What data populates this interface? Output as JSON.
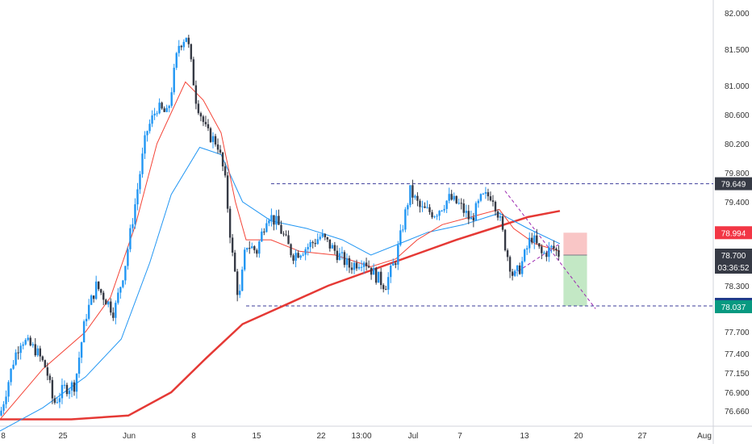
{
  "chart_data": {
    "type": "candlestick",
    "colors": {
      "up": "#2196f3",
      "down": "#363a45",
      "ema_fast": "#f44336",
      "ema_mid": "#2196f3",
      "ema_slow": "#e53935",
      "level_line": "#3b3b9a",
      "triangle": "#9c27b0",
      "stop_zone": "#f9c6c6",
      "target_zone": "#c3e8c5",
      "axis_text": "#333333",
      "label_dark": "#363a45",
      "label_red": "#f23645",
      "label_green": "#089981",
      "label_blue": "#1e3a8a"
    },
    "y_axis": {
      "ticks": [
        "82.000",
        "81.500",
        "81.000",
        "80.600",
        "80.200",
        "79.800",
        "79.400",
        "78.700",
        "78.300",
        "77.700",
        "77.400",
        "77.150",
        "76.900",
        "76.660"
      ],
      "range": [
        76.5,
        82.1
      ]
    },
    "x_axis": {
      "ticks": [
        "8",
        "25",
        "Jun",
        "8",
        "15",
        "22",
        "13:00",
        "Jul",
        "7",
        "13",
        "20",
        "27",
        "Aug"
      ]
    },
    "price_labels": {
      "resistance": "79.649",
      "stop": "78.994",
      "current": "78.700",
      "countdown": "03:36:52",
      "support": "78.037"
    },
    "levels": {
      "resistance": 79.649,
      "support": 78.037,
      "stop": 78.994,
      "entry": 78.7
    },
    "price_path": [
      [
        0.0,
        76.6
      ],
      [
        0.02,
        77.35
      ],
      [
        0.03,
        77.6
      ],
      [
        0.05,
        77.45
      ],
      [
        0.065,
        77.2
      ],
      [
        0.075,
        76.75
      ],
      [
        0.09,
        76.95
      ],
      [
        0.105,
        77.0
      ],
      [
        0.12,
        77.9
      ],
      [
        0.135,
        78.3
      ],
      [
        0.15,
        78.1
      ],
      [
        0.16,
        77.95
      ],
      [
        0.175,
        78.55
      ],
      [
        0.19,
        79.4
      ],
      [
        0.205,
        80.35
      ],
      [
        0.22,
        80.7
      ],
      [
        0.235,
        80.6
      ],
      [
        0.25,
        81.55
      ],
      [
        0.262,
        81.7
      ],
      [
        0.275,
        80.8
      ],
      [
        0.29,
        80.35
      ],
      [
        0.305,
        80.2
      ],
      [
        0.315,
        79.75
      ],
      [
        0.325,
        78.75
      ],
      [
        0.335,
        78.1
      ],
      [
        0.345,
        78.85
      ],
      [
        0.36,
        78.75
      ],
      [
        0.375,
        79.25
      ],
      [
        0.39,
        79.1
      ],
      [
        0.41,
        78.7
      ],
      [
        0.43,
        78.8
      ],
      [
        0.45,
        78.95
      ],
      [
        0.47,
        78.75
      ],
      [
        0.49,
        78.55
      ],
      [
        0.51,
        78.65
      ],
      [
        0.525,
        78.45
      ],
      [
        0.54,
        78.3
      ],
      [
        0.555,
        78.65
      ],
      [
        0.565,
        79.1
      ],
      [
        0.575,
        79.55
      ],
      [
        0.59,
        79.3
      ],
      [
        0.61,
        79.25
      ],
      [
        0.63,
        79.45
      ],
      [
        0.645,
        79.35
      ],
      [
        0.66,
        79.15
      ],
      [
        0.675,
        79.45
      ],
      [
        0.69,
        79.5
      ],
      [
        0.7,
        79.2
      ],
      [
        0.71,
        78.75
      ],
      [
        0.72,
        78.4
      ],
      [
        0.73,
        78.55
      ],
      [
        0.745,
        78.95
      ],
      [
        0.76,
        78.7
      ],
      [
        0.775,
        78.8
      ],
      [
        0.785,
        78.7
      ]
    ],
    "ema_slow_path": [
      [
        0.0,
        76.55
      ],
      [
        0.1,
        76.55
      ],
      [
        0.18,
        76.6
      ],
      [
        0.24,
        76.9
      ],
      [
        0.29,
        77.35
      ],
      [
        0.34,
        77.8
      ],
      [
        0.4,
        78.05
      ],
      [
        0.46,
        78.3
      ],
      [
        0.52,
        78.5
      ],
      [
        0.58,
        78.7
      ],
      [
        0.64,
        78.9
      ],
      [
        0.69,
        79.05
      ],
      [
        0.74,
        79.2
      ],
      [
        0.785,
        79.28
      ]
    ],
    "ema_mid_path": [
      [
        0.0,
        76.4
      ],
      [
        0.06,
        76.7
      ],
      [
        0.12,
        77.1
      ],
      [
        0.17,
        77.6
      ],
      [
        0.21,
        78.6
      ],
      [
        0.24,
        79.5
      ],
      [
        0.28,
        80.15
      ],
      [
        0.31,
        80.05
      ],
      [
        0.34,
        79.4
      ],
      [
        0.38,
        79.15
      ],
      [
        0.43,
        79.05
      ],
      [
        0.48,
        78.9
      ],
      [
        0.52,
        78.7
      ],
      [
        0.56,
        78.85
      ],
      [
        0.6,
        79.0
      ],
      [
        0.65,
        79.1
      ],
      [
        0.7,
        79.25
      ],
      [
        0.74,
        79.05
      ],
      [
        0.785,
        78.85
      ]
    ],
    "ema_fast_path": [
      [
        0.0,
        76.55
      ],
      [
        0.06,
        77.2
      ],
      [
        0.12,
        77.7
      ],
      [
        0.155,
        78.15
      ],
      [
        0.19,
        79.1
      ],
      [
        0.22,
        80.2
      ],
      [
        0.26,
        81.05
      ],
      [
        0.285,
        80.8
      ],
      [
        0.31,
        80.35
      ],
      [
        0.33,
        79.4
      ],
      [
        0.345,
        78.9
      ],
      [
        0.38,
        78.9
      ],
      [
        0.42,
        78.75
      ],
      [
        0.47,
        78.7
      ],
      [
        0.52,
        78.55
      ],
      [
        0.555,
        78.65
      ],
      [
        0.585,
        78.9
      ],
      [
        0.62,
        79.1
      ],
      [
        0.66,
        79.2
      ],
      [
        0.7,
        79.3
      ],
      [
        0.72,
        79.05
      ],
      [
        0.75,
        78.85
      ],
      [
        0.785,
        78.75
      ]
    ],
    "triangle": {
      "upper": [
        [
          0.708,
          79.55
        ],
        [
          0.835,
          78.0
        ]
      ],
      "lower": [
        [
          0.72,
          78.45
        ],
        [
          0.785,
          78.85
        ]
      ]
    },
    "zones": {
      "x_range": [
        0.79,
        0.823
      ],
      "stop_range": [
        78.7,
        78.994
      ],
      "target_range": [
        78.037,
        78.7
      ]
    }
  }
}
